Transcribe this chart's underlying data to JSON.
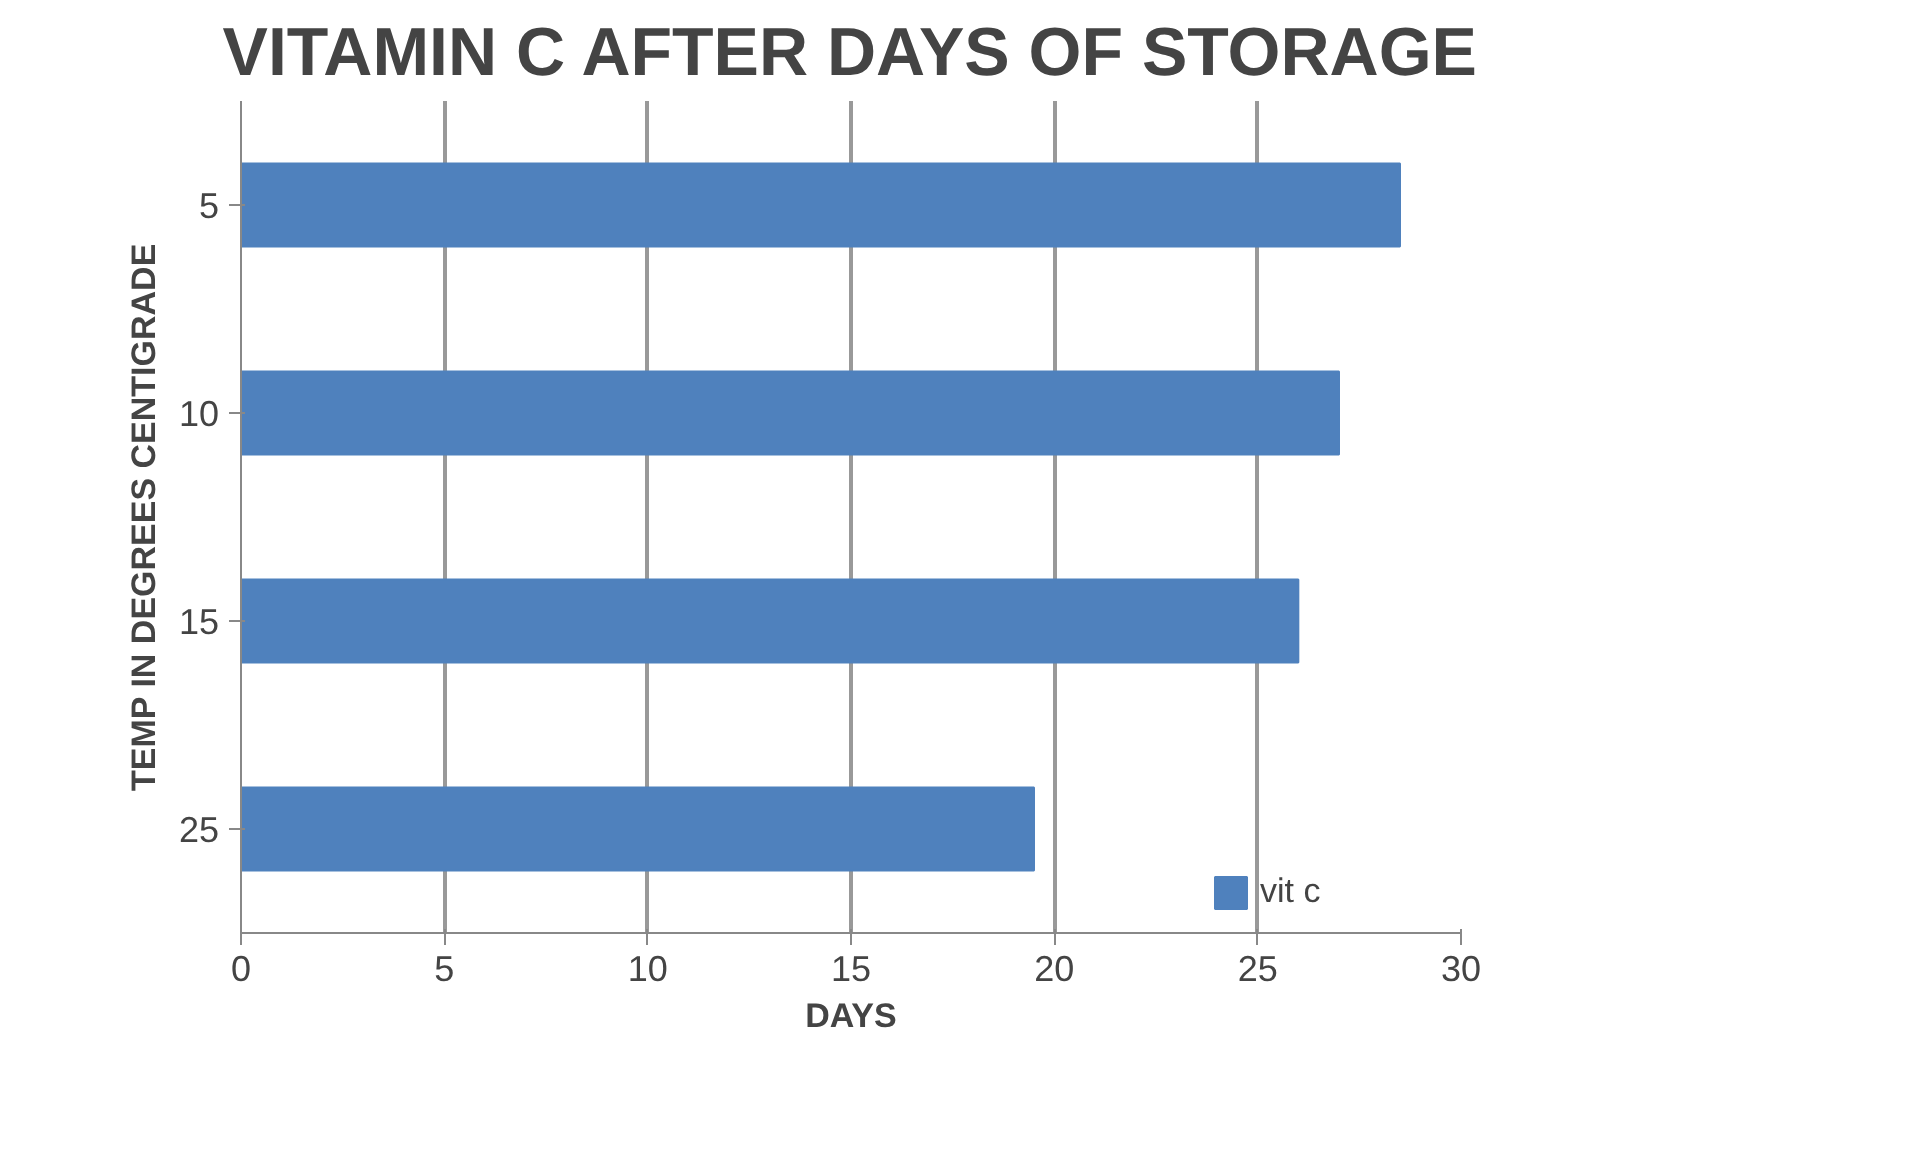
{
  "chart_data": {
    "type": "bar",
    "orientation": "horizontal",
    "title": "VITAMIN C AFTER DAYS OF STORAGE",
    "xlabel": "DAYS",
    "ylabel": "TEMP IN DEGREES CENTIGRADE",
    "categories": [
      "5",
      "10",
      "15",
      "25"
    ],
    "series": [
      {
        "name": "vit c",
        "color": "#4f81bd",
        "values": [
          28.5,
          27,
          26,
          19.5
        ]
      }
    ],
    "xlim": [
      0,
      30
    ],
    "xticks": [
      0,
      5,
      10,
      15,
      20,
      25,
      30
    ],
    "grid": "x",
    "legend": "right"
  }
}
